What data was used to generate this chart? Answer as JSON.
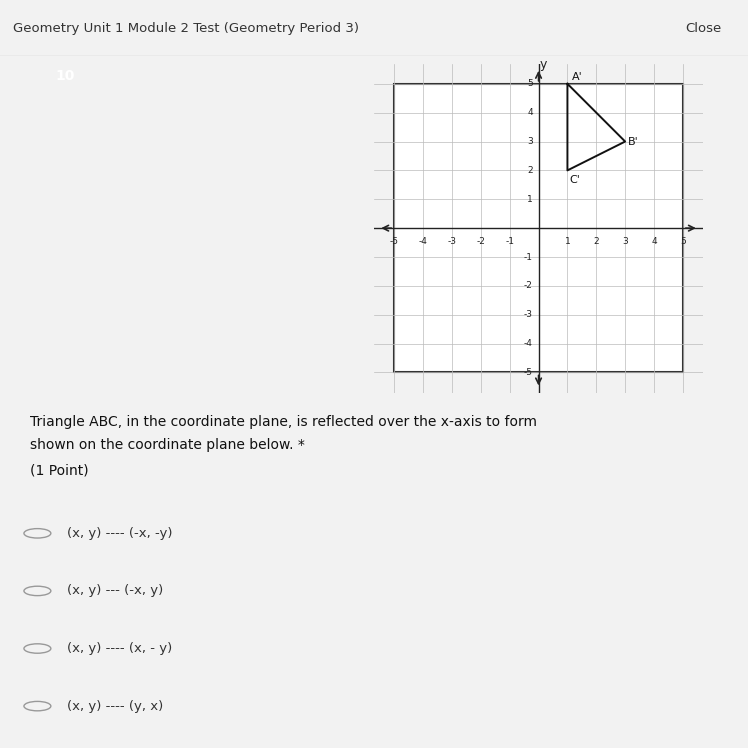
{
  "title": "Geometry Unit 1 Module 2 Test (Geometry Period 3)",
  "question_number": "10",
  "close_text": "Close",
  "description_line1": "Triangle ABC, in the coordinate plane, is reflected over the x-axis to form",
  "description_line2": "shown on the coordinate plane below. *",
  "description_line3": "(1 Point)",
  "triangle_primed": {
    "A_prime": [
      1,
      5
    ],
    "B_prime": [
      3,
      3
    ],
    "C_prime": [
      1,
      2
    ]
  },
  "label_offsets": {
    "A_prime": [
      1.15,
      5.05
    ],
    "B_prime": [
      3.08,
      3.0
    ],
    "C_prime": [
      1.08,
      1.85
    ]
  },
  "choices": [
    "(x, y) ---- (-x, -y)",
    "(x, y) --- (-x, y)",
    "(x, y) ---- (x, - y)",
    "(x, y) ---- (y, x)"
  ],
  "axis_range": [
    -5,
    5
  ],
  "grid_color": "#bbbbbb",
  "triangle_color": "#111111",
  "bg_main": "#e8eff0",
  "bg_header": "#e8e8e8",
  "bg_content": "#dde9ec",
  "bg_choices": "#f2f2f2",
  "bg_plot": "#f5f5f5",
  "badge_color": "#3a8a6e",
  "header_border": "#cccccc"
}
